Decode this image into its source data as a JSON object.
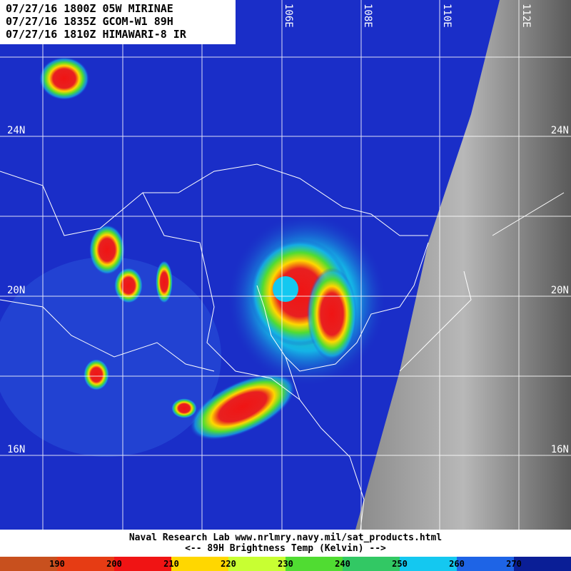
{
  "header": {
    "lines": [
      "07/27/16 1800Z 05W MIRINAE",
      "07/27/16 1835Z GCOM-W1 89H",
      "07/27/16 1810Z HIMAWARI-8 IR"
    ]
  },
  "map": {
    "lon_labels": [
      "106E",
      "108E",
      "110E",
      "112E"
    ],
    "lat_labels": [
      "24N",
      "20N",
      "16N"
    ]
  },
  "footer": {
    "lines": [
      "Naval Research Lab  www.nrlmry.navy.mil/sat_products.html",
      "<--   89H Brightness Temp (Kelvin)   -->"
    ]
  },
  "colorbar": {
    "labels": [
      "190",
      "200",
      "210",
      "220",
      "230",
      "240",
      "250",
      "260",
      "270"
    ],
    "colors": [
      "#c8501e",
      "#e63c14",
      "#f01414",
      "#ffd700",
      "#c8ff32",
      "#50dc32",
      "#32c864",
      "#14c8f0",
      "#1e64e6",
      "#0a1e96"
    ]
  }
}
